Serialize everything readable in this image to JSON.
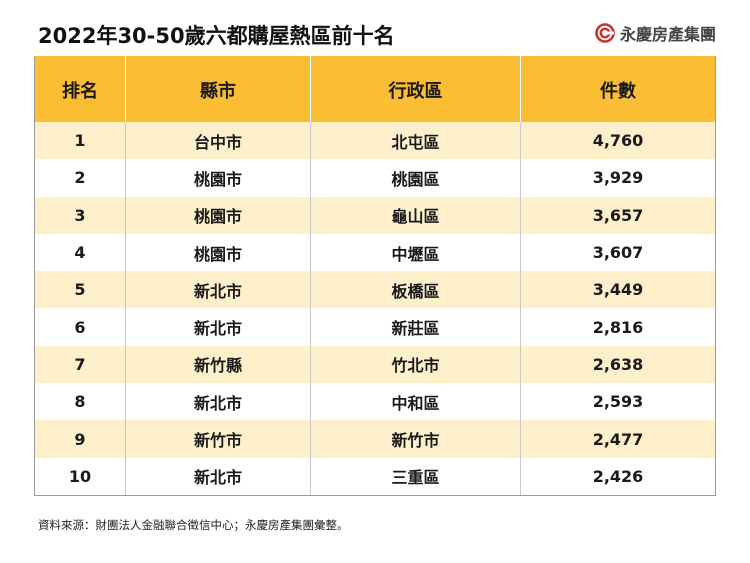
{
  "title": "2022年30-50歲六都購屋熱區前十名",
  "brand": {
    "name": "永慶房產集團",
    "logo_icon": "yungching-swirl-logo",
    "logo_color": "#c8322f"
  },
  "colors": {
    "header_bg": "#fbbd33",
    "stripe_bg": "#fff0cc"
  },
  "table": {
    "headers": [
      "排名",
      "縣市",
      "行政區",
      "件數"
    ],
    "rows": [
      {
        "rank": "1",
        "city": "台中市",
        "district": "北屯區",
        "count": "4,760"
      },
      {
        "rank": "2",
        "city": "桃園市",
        "district": "桃園區",
        "count": "3,929"
      },
      {
        "rank": "3",
        "city": "桃園市",
        "district": "龜山區",
        "count": "3,657"
      },
      {
        "rank": "4",
        "city": "桃園市",
        "district": "中壢區",
        "count": "3,607"
      },
      {
        "rank": "5",
        "city": "新北市",
        "district": "板橋區",
        "count": "3,449"
      },
      {
        "rank": "6",
        "city": "新北市",
        "district": "新莊區",
        "count": "2,816"
      },
      {
        "rank": "7",
        "city": "新竹縣",
        "district": "竹北市",
        "count": "2,638"
      },
      {
        "rank": "8",
        "city": "新北市",
        "district": "中和區",
        "count": "2,593"
      },
      {
        "rank": "9",
        "city": "新竹市",
        "district": "新竹市",
        "count": "2,477"
      },
      {
        "rank": "10",
        "city": "新北市",
        "district": "三重區",
        "count": "2,426"
      }
    ]
  },
  "footnote": "資料來源：財團法人金融聯合徵信中心；永慶房產集團彙整。"
}
